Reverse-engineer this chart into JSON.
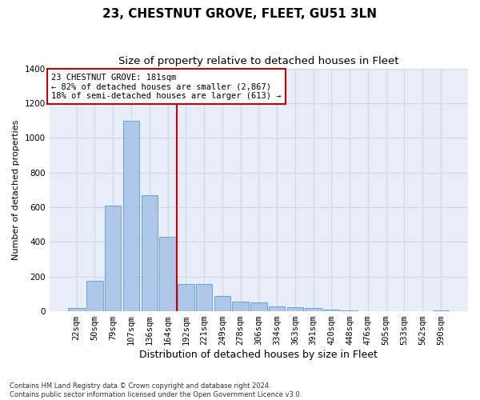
{
  "title": "23, CHESTNUT GROVE, FLEET, GU51 3LN",
  "subtitle": "Size of property relative to detached houses in Fleet",
  "xlabel": "Distribution of detached houses by size in Fleet",
  "ylabel": "Number of detached properties",
  "categories": [
    "22sqm",
    "50sqm",
    "79sqm",
    "107sqm",
    "136sqm",
    "164sqm",
    "192sqm",
    "221sqm",
    "249sqm",
    "278sqm",
    "306sqm",
    "334sqm",
    "363sqm",
    "391sqm",
    "420sqm",
    "448sqm",
    "476sqm",
    "505sqm",
    "533sqm",
    "562sqm",
    "590sqm"
  ],
  "values": [
    20,
    175,
    610,
    1100,
    670,
    430,
    155,
    155,
    90,
    55,
    50,
    30,
    25,
    20,
    10,
    5,
    0,
    0,
    0,
    0,
    5
  ],
  "bar_color": "#aec6e8",
  "bar_edge_color": "#5b9bd5",
  "vline_index": 6,
  "vline_color": "#cc0000",
  "annotation_text": "23 CHESTNUT GROVE: 181sqm\n← 82% of detached houses are smaller (2,867)\n18% of semi-detached houses are larger (613) →",
  "annotation_box_color": "#ffffff",
  "annotation_box_edge": "#cc0000",
  "ylim": [
    0,
    1400
  ],
  "yticks": [
    0,
    200,
    400,
    600,
    800,
    1000,
    1200,
    1400
  ],
  "grid_color": "#d0d8e8",
  "bg_color": "#e8eef8",
  "footer": "Contains HM Land Registry data © Crown copyright and database right 2024.\nContains public sector information licensed under the Open Government Licence v3.0.",
  "title_fontsize": 11,
  "subtitle_fontsize": 9.5,
  "tick_fontsize": 7.5,
  "ylabel_fontsize": 8,
  "xlabel_fontsize": 9,
  "annotation_fontsize": 7.5
}
